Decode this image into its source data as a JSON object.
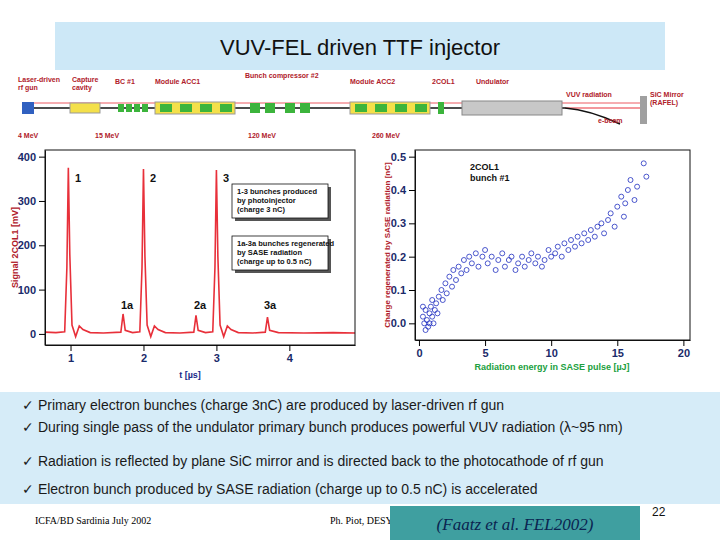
{
  "title": "VUV-FEL driven TTF injector",
  "diagram": {
    "components": [
      [
        "Laser-driven",
        "rf gun"
      ],
      [
        "Capture",
        "cavity"
      ],
      [
        "BC #1"
      ],
      [
        "Module ACC1"
      ],
      [
        "Bunch compressor #2"
      ],
      [
        "Module ACC2"
      ],
      [
        "2COL1"
      ],
      [
        "Undulator"
      ],
      [
        "VUV radiation"
      ],
      [
        "SiC Mirror",
        "(RAFEL)"
      ],
      [
        "e-beam"
      ]
    ],
    "energies": [
      "4 MeV",
      "15 MeV",
      "120 MeV",
      "260 MeV"
    ]
  },
  "chart_data": [
    {
      "type": "line",
      "xlabel": "t [µs]",
      "ylabel": "Signal 2COL1 [mV]",
      "color": "#e8303a",
      "x": [
        0.65,
        0.8,
        0.92,
        0.95,
        0.97,
        0.99,
        1.02,
        1.07,
        1.12,
        1.17,
        1.27,
        1.45,
        1.69,
        1.72,
        1.75,
        1.85,
        1.95,
        1.98,
        2.0,
        2.02,
        2.05,
        2.1,
        2.15,
        2.2,
        2.3,
        2.5,
        2.69,
        2.72,
        2.75,
        2.85,
        2.95,
        2.98,
        3.0,
        3.02,
        3.05,
        3.1,
        3.15,
        3.2,
        3.3,
        3.5,
        3.67,
        3.7,
        3.73,
        3.85,
        4.2,
        4.6,
        4.9
      ],
      "values": [
        4,
        3,
        5,
        150,
        375,
        180,
        20,
        -6,
        18,
        10,
        3,
        2,
        4,
        45,
        8,
        3,
        5,
        150,
        372,
        175,
        20,
        -6,
        18,
        10,
        3,
        2,
        4,
        42,
        8,
        3,
        5,
        150,
        370,
        175,
        20,
        -6,
        18,
        10,
        3,
        2,
        4,
        38,
        8,
        3,
        2,
        3,
        2
      ],
      "xlim": [
        0.65,
        4.9
      ],
      "ylim": [
        -25,
        415
      ],
      "xticks": [
        1,
        2,
        3,
        4
      ],
      "yticks": [
        0,
        100,
        200,
        300,
        400
      ],
      "grid": false,
      "peak_labels": [
        "1",
        "2",
        "3",
        "1a",
        "2a",
        "3a"
      ],
      "notes": [
        [
          "1-3 bunches produced",
          "by photoinjector",
          "(charge 3 nC)"
        ],
        [
          "1a-3a bunches regenerated",
          "by SASE radiation",
          "(charge up to 0.5 nC)"
        ]
      ]
    },
    {
      "type": "scatter",
      "xlabel": "Radiation energy in SASE pulse [µJ]",
      "ylabel": "Charge regenerated by SASE radiation [nC]",
      "color": "#1f2fc0",
      "marker": "open_circle",
      "x": [
        0.3,
        0.4,
        0.5,
        0.6,
        0.7,
        0.8,
        0.9,
        1.0,
        1.1,
        1.2,
        0.5,
        0.8,
        1.3,
        1.4,
        0.3,
        1.0,
        1.5,
        1.7,
        1.8,
        2.0,
        2.1,
        2.3,
        2.5,
        2.6,
        2.8,
        3.0,
        3.2,
        3.4,
        3.6,
        3.8,
        4.0,
        4.3,
        4.5,
        4.8,
        5.0,
        5.2,
        5.5,
        5.8,
        6.0,
        6.3,
        6.5,
        6.8,
        7.0,
        7.3,
        7.5,
        7.8,
        8.0,
        8.3,
        8.5,
        8.8,
        9.0,
        9.3,
        9.5,
        9.8,
        10.0,
        10.3,
        10.5,
        10.8,
        11.0,
        11.3,
        11.5,
        11.8,
        12.0,
        12.3,
        12.5,
        12.8,
        13.0,
        13.3,
        13.5,
        13.8,
        14.0,
        14.3,
        14.5,
        14.8,
        15.0,
        15.3,
        15.5,
        15.8,
        16.0,
        16.5,
        16.3,
        17.0,
        17.2,
        15.6
      ],
      "values": [
        0.02,
        0.0,
        0.04,
        0.01,
        -0.01,
        0.03,
        0.05,
        0.02,
        0.0,
        0.04,
        -0.02,
        0.0,
        0.06,
        0.03,
        0.05,
        0.07,
        0.08,
        0.1,
        0.07,
        0.12,
        0.09,
        0.14,
        0.11,
        0.16,
        0.13,
        0.17,
        0.15,
        0.19,
        0.16,
        0.2,
        0.18,
        0.21,
        0.17,
        0.2,
        0.22,
        0.18,
        0.2,
        0.16,
        0.19,
        0.21,
        0.17,
        0.19,
        0.2,
        0.16,
        0.18,
        0.2,
        0.17,
        0.19,
        0.21,
        0.18,
        0.2,
        0.17,
        0.19,
        0.22,
        0.2,
        0.21,
        0.23,
        0.2,
        0.24,
        0.22,
        0.25,
        0.23,
        0.26,
        0.24,
        0.27,
        0.25,
        0.28,
        0.26,
        0.29,
        0.3,
        0.27,
        0.31,
        0.33,
        0.29,
        0.35,
        0.38,
        0.32,
        0.4,
        0.43,
        0.41,
        0.37,
        0.48,
        0.44,
        0.36
      ],
      "xlim": [
        -0.3,
        20.5
      ],
      "ylim": [
        -0.05,
        0.52
      ],
      "xticks": [
        0,
        5,
        10,
        15,
        20
      ],
      "yticks": [
        {
          "value": 0,
          "label": "0.0"
        },
        0.1,
        0.2,
        0.3,
        0.4,
        0.5
      ],
      "grid": false,
      "notes": [
        [
          "2COL1",
          "bunch #1"
        ]
      ]
    }
  ],
  "bullets": [
    "✓ Primary electron bunches (charge 3nC) are produced by laser-driven rf gun",
    "✓ During single pass of the undulator primary bunch produces powerful VUV radiation (λ~95 nm)",
    "✓ Radiation is reflected by plane SiC mirror and is directed back to the photocathode of rf gun",
    "✓ Electron bunch produced by SASE radiation (charge up to 0.5 nC) is accelerated"
  ],
  "footer": {
    "left": "ICFA/BD Sardinia July 2002",
    "center": "Ph. Piot, DESY",
    "reference": "(Faatz et al. FEL2002)",
    "page": "22"
  }
}
